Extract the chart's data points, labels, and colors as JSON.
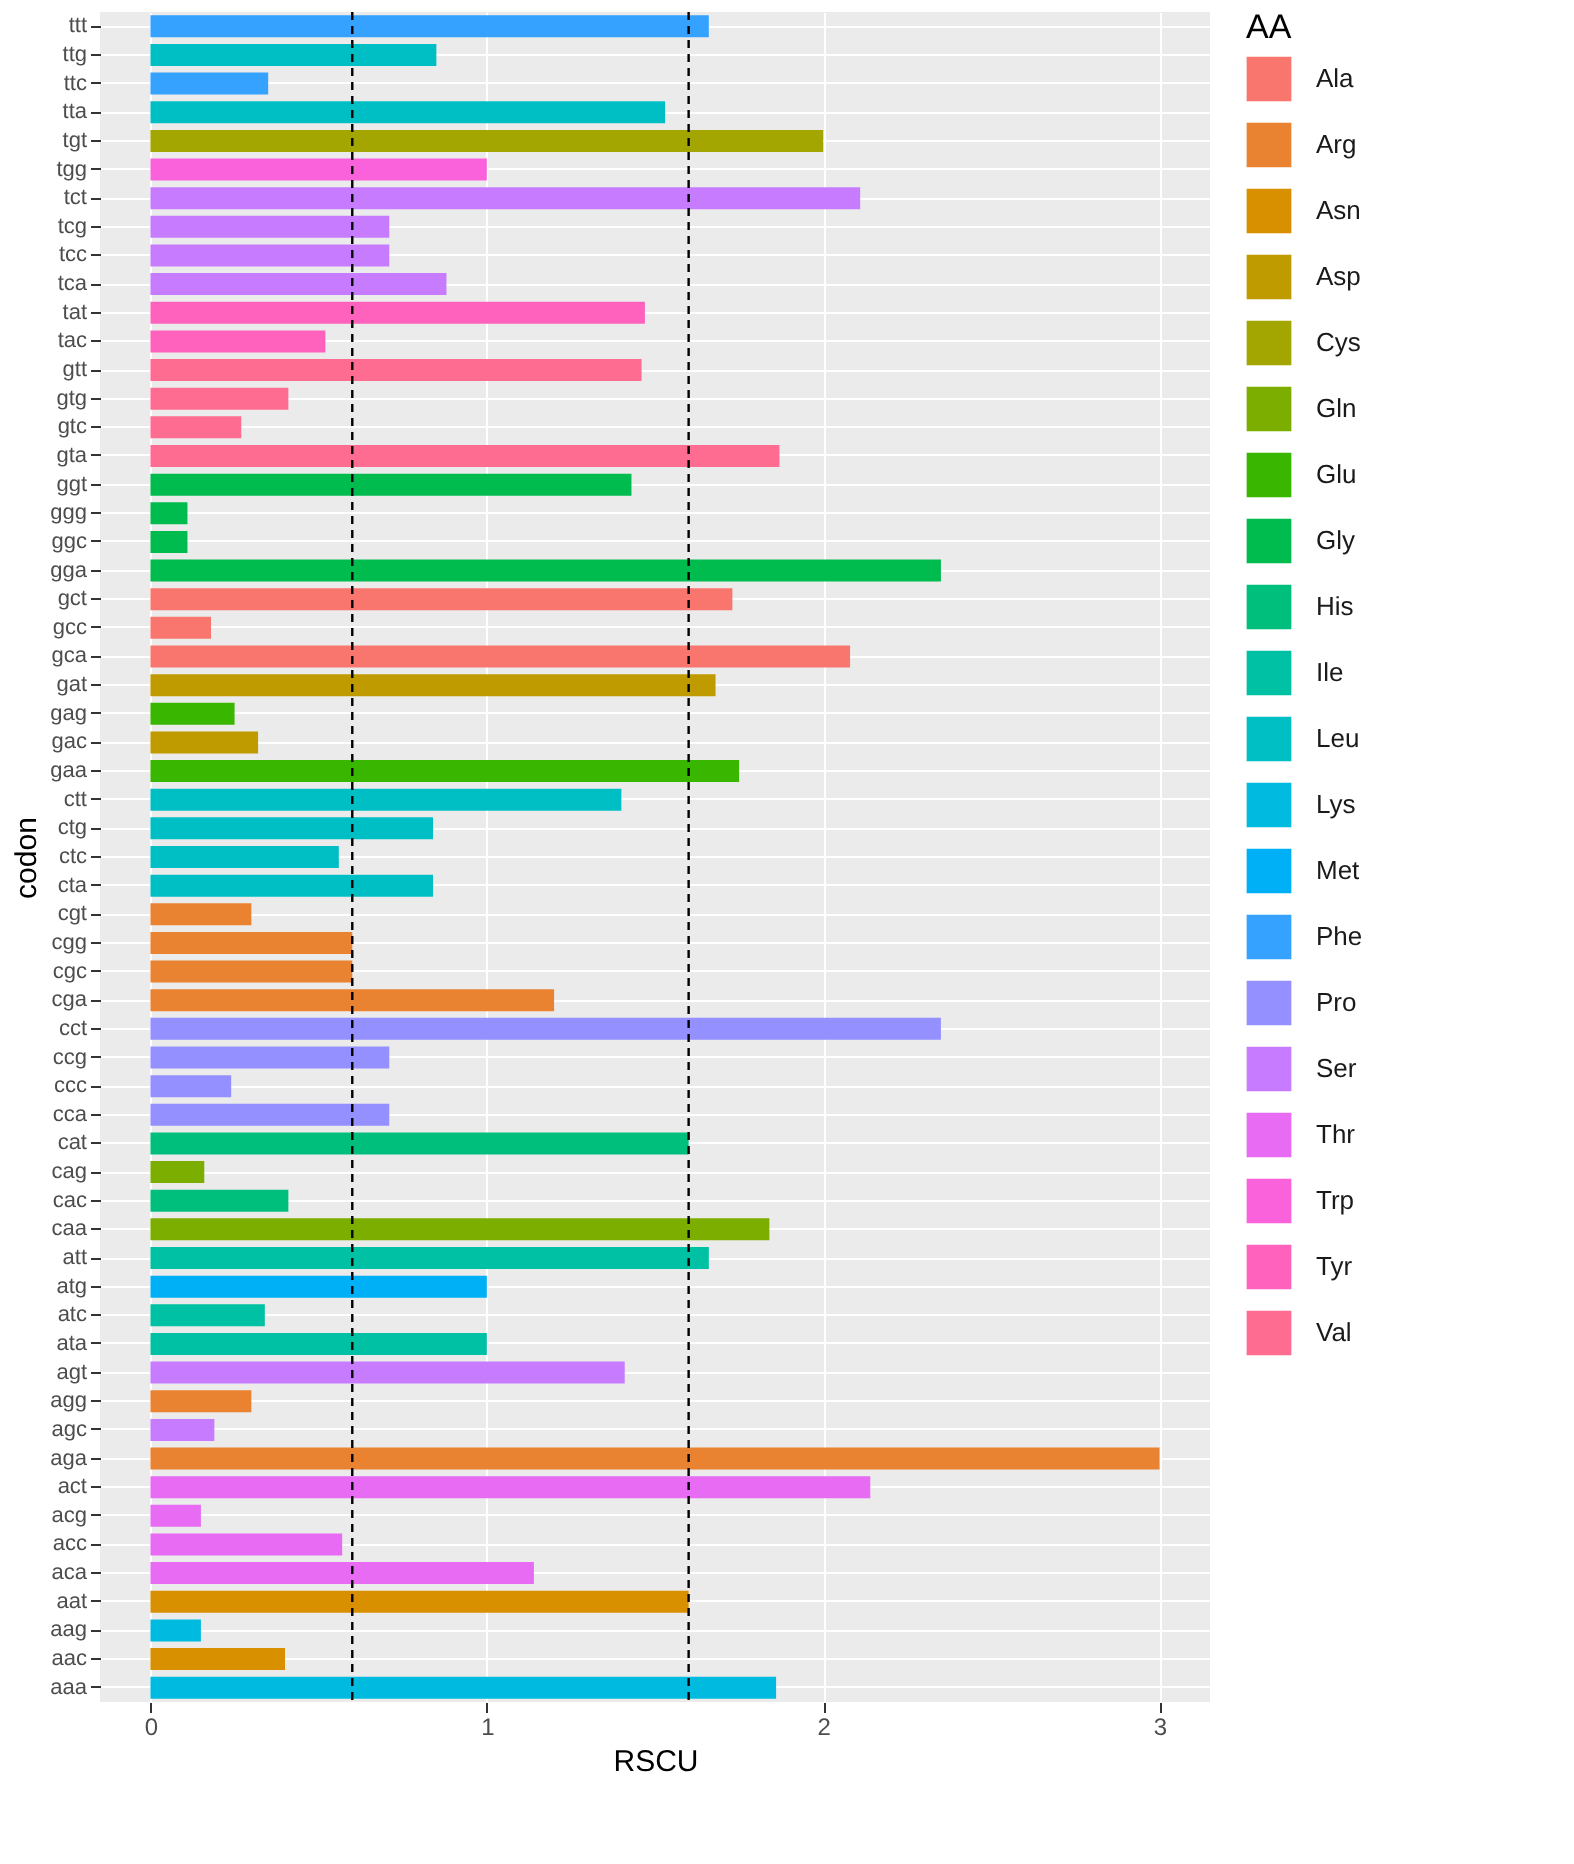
{
  "chart_data": {
    "type": "bar",
    "orientation": "horizontal",
    "xlabel": "RSCU",
    "ylabel": "codon",
    "legend_title": "AA",
    "legend": "right",
    "grid": true,
    "categories": [
      "ttt",
      "ttg",
      "ttc",
      "tta",
      "tgt",
      "tgg",
      "tct",
      "tcg",
      "tcc",
      "tca",
      "tat",
      "tac",
      "gtt",
      "gtg",
      "gtc",
      "gta",
      "ggt",
      "ggg",
      "ggc",
      "gga",
      "gct",
      "gcc",
      "gca",
      "gat",
      "gag",
      "gac",
      "gaa",
      "ctt",
      "ctg",
      "ctc",
      "cta",
      "cgt",
      "cgg",
      "cgc",
      "cga",
      "cct",
      "ccg",
      "ccc",
      "cca",
      "cat",
      "cag",
      "cac",
      "caa",
      "att",
      "atg",
      "atc",
      "ata",
      "agt",
      "agg",
      "agc",
      "aga",
      "act",
      "acg",
      "acc",
      "aca",
      "aat",
      "aag",
      "aac",
      "aaa"
    ],
    "xlim": [
      -0.15,
      3.15
    ],
    "xticks": [
      0,
      1,
      2,
      3
    ],
    "ref_lines": [
      {
        "axis": "x",
        "value": 0.6,
        "color": "#000000",
        "line_style": "dashed"
      },
      {
        "axis": "x",
        "value": 1.6,
        "color": "#000000",
        "line_style": "dashed"
      }
    ],
    "series": [
      {
        "name": "Ala",
        "color": "#F8766D",
        "values": [
          null,
          null,
          null,
          null,
          null,
          null,
          null,
          null,
          null,
          null,
          null,
          null,
          null,
          null,
          null,
          null,
          null,
          null,
          null,
          null,
          1.73,
          0.18,
          2.08,
          null,
          null,
          null,
          null,
          null,
          null,
          null,
          null,
          null,
          null,
          null,
          null,
          null,
          null,
          null,
          null,
          null,
          null,
          null,
          null,
          null,
          null,
          null,
          null,
          null,
          null,
          null,
          null,
          null,
          null,
          null,
          null,
          null,
          null,
          null,
          null
        ]
      },
      {
        "name": "Arg",
        "color": "#EA8331",
        "values": [
          null,
          null,
          null,
          null,
          null,
          null,
          null,
          null,
          null,
          null,
          null,
          null,
          null,
          null,
          null,
          null,
          null,
          null,
          null,
          null,
          null,
          null,
          null,
          null,
          null,
          null,
          null,
          null,
          null,
          null,
          null,
          0.3,
          0.6,
          0.6,
          1.2,
          null,
          null,
          null,
          null,
          null,
          null,
          null,
          null,
          null,
          null,
          null,
          null,
          null,
          0.3,
          null,
          3.0,
          null,
          null,
          null,
          null,
          null,
          null,
          null,
          null
        ]
      },
      {
        "name": "Asn",
        "color": "#D89000",
        "values": [
          null,
          null,
          null,
          null,
          null,
          null,
          null,
          null,
          null,
          null,
          null,
          null,
          null,
          null,
          null,
          null,
          null,
          null,
          null,
          null,
          null,
          null,
          null,
          null,
          null,
          null,
          null,
          null,
          null,
          null,
          null,
          null,
          null,
          null,
          null,
          null,
          null,
          null,
          null,
          null,
          null,
          null,
          null,
          null,
          null,
          null,
          null,
          null,
          null,
          null,
          null,
          null,
          null,
          null,
          null,
          1.6,
          null,
          0.4,
          null
        ]
      },
      {
        "name": "Asp",
        "color": "#C09B00",
        "values": [
          null,
          null,
          null,
          null,
          null,
          null,
          null,
          null,
          null,
          null,
          null,
          null,
          null,
          null,
          null,
          null,
          null,
          null,
          null,
          null,
          null,
          null,
          null,
          1.68,
          null,
          0.32,
          null,
          null,
          null,
          null,
          null,
          null,
          null,
          null,
          null,
          null,
          null,
          null,
          null,
          null,
          null,
          null,
          null,
          null,
          null,
          null,
          null,
          null,
          null,
          null,
          null,
          null,
          null,
          null,
          null,
          null,
          null,
          null,
          null
        ]
      },
      {
        "name": "Cys",
        "color": "#A3A500",
        "values": [
          null,
          null,
          null,
          null,
          2.0,
          null,
          null,
          null,
          null,
          null,
          null,
          null,
          null,
          null,
          null,
          null,
          null,
          null,
          null,
          null,
          null,
          null,
          null,
          null,
          null,
          null,
          null,
          null,
          null,
          null,
          null,
          null,
          null,
          null,
          null,
          null,
          null,
          null,
          null,
          null,
          null,
          null,
          null,
          null,
          null,
          null,
          null,
          null,
          null,
          null,
          null,
          null,
          null,
          null,
          null,
          null,
          null,
          null,
          null
        ]
      },
      {
        "name": "Gln",
        "color": "#7CAE00",
        "values": [
          null,
          null,
          null,
          null,
          null,
          null,
          null,
          null,
          null,
          null,
          null,
          null,
          null,
          null,
          null,
          null,
          null,
          null,
          null,
          null,
          null,
          null,
          null,
          null,
          null,
          null,
          null,
          null,
          null,
          null,
          null,
          null,
          null,
          null,
          null,
          null,
          null,
          null,
          null,
          null,
          0.16,
          null,
          1.84,
          null,
          null,
          null,
          null,
          null,
          null,
          null,
          null,
          null,
          null,
          null,
          null,
          null,
          null,
          null,
          null
        ]
      },
      {
        "name": "Glu",
        "color": "#39B600",
        "values": [
          null,
          null,
          null,
          null,
          null,
          null,
          null,
          null,
          null,
          null,
          null,
          null,
          null,
          null,
          null,
          null,
          null,
          null,
          null,
          null,
          null,
          null,
          null,
          null,
          0.25,
          null,
          1.75,
          null,
          null,
          null,
          null,
          null,
          null,
          null,
          null,
          null,
          null,
          null,
          null,
          null,
          null,
          null,
          null,
          null,
          null,
          null,
          null,
          null,
          null,
          null,
          null,
          null,
          null,
          null,
          null,
          null,
          null,
          null,
          null
        ]
      },
      {
        "name": "Gly",
        "color": "#00BB4E",
        "values": [
          null,
          null,
          null,
          null,
          null,
          null,
          null,
          null,
          null,
          null,
          null,
          null,
          null,
          null,
          null,
          null,
          1.43,
          0.11,
          0.11,
          2.35,
          null,
          null,
          null,
          null,
          null,
          null,
          null,
          null,
          null,
          null,
          null,
          null,
          null,
          null,
          null,
          null,
          null,
          null,
          null,
          null,
          null,
          null,
          null,
          null,
          null,
          null,
          null,
          null,
          null,
          null,
          null,
          null,
          null,
          null,
          null,
          null,
          null,
          null,
          null
        ]
      },
      {
        "name": "His",
        "color": "#00BF7D",
        "values": [
          null,
          null,
          null,
          null,
          null,
          null,
          null,
          null,
          null,
          null,
          null,
          null,
          null,
          null,
          null,
          null,
          null,
          null,
          null,
          null,
          null,
          null,
          null,
          null,
          null,
          null,
          null,
          null,
          null,
          null,
          null,
          null,
          null,
          null,
          null,
          null,
          null,
          null,
          null,
          1.6,
          null,
          0.41,
          null,
          null,
          null,
          null,
          null,
          null,
          null,
          null,
          null,
          null,
          null,
          null,
          null,
          null,
          null,
          null,
          null
        ]
      },
      {
        "name": "Ile",
        "color": "#00C1A3",
        "values": [
          null,
          null,
          null,
          null,
          null,
          null,
          null,
          null,
          null,
          null,
          null,
          null,
          null,
          null,
          null,
          null,
          null,
          null,
          null,
          null,
          null,
          null,
          null,
          null,
          null,
          null,
          null,
          null,
          null,
          null,
          null,
          null,
          null,
          null,
          null,
          null,
          null,
          null,
          null,
          null,
          null,
          null,
          null,
          1.66,
          null,
          0.34,
          1.0,
          null,
          null,
          null,
          null,
          null,
          null,
          null,
          null,
          null,
          null,
          null,
          null
        ]
      },
      {
        "name": "Leu",
        "color": "#00BFC4",
        "values": [
          null,
          0.85,
          null,
          1.53,
          null,
          null,
          null,
          null,
          null,
          null,
          null,
          null,
          null,
          null,
          null,
          null,
          null,
          null,
          null,
          null,
          null,
          null,
          null,
          null,
          null,
          null,
          null,
          1.4,
          0.84,
          0.56,
          0.84,
          null,
          null,
          null,
          null,
          null,
          null,
          null,
          null,
          null,
          null,
          null,
          null,
          null,
          null,
          null,
          null,
          null,
          null,
          null,
          null,
          null,
          null,
          null,
          null,
          null,
          null,
          null,
          null
        ]
      },
      {
        "name": "Lys",
        "color": "#00BAE0",
        "values": [
          null,
          null,
          null,
          null,
          null,
          null,
          null,
          null,
          null,
          null,
          null,
          null,
          null,
          null,
          null,
          null,
          null,
          null,
          null,
          null,
          null,
          null,
          null,
          null,
          null,
          null,
          null,
          null,
          null,
          null,
          null,
          null,
          null,
          null,
          null,
          null,
          null,
          null,
          null,
          null,
          null,
          null,
          null,
          null,
          null,
          null,
          null,
          null,
          null,
          null,
          null,
          null,
          null,
          null,
          null,
          null,
          0.15,
          null,
          1.86
        ]
      },
      {
        "name": "Met",
        "color": "#00B0F6",
        "values": [
          null,
          null,
          null,
          null,
          null,
          null,
          null,
          null,
          null,
          null,
          null,
          null,
          null,
          null,
          null,
          null,
          null,
          null,
          null,
          null,
          null,
          null,
          null,
          null,
          null,
          null,
          null,
          null,
          null,
          null,
          null,
          null,
          null,
          null,
          null,
          null,
          null,
          null,
          null,
          null,
          null,
          null,
          null,
          null,
          1.0,
          null,
          null,
          null,
          null,
          null,
          null,
          null,
          null,
          null,
          null,
          null,
          null,
          null,
          null
        ]
      },
      {
        "name": "Phe",
        "color": "#35A2FF",
        "values": [
          1.66,
          null,
          0.35,
          null,
          null,
          null,
          null,
          null,
          null,
          null,
          null,
          null,
          null,
          null,
          null,
          null,
          null,
          null,
          null,
          null,
          null,
          null,
          null,
          null,
          null,
          null,
          null,
          null,
          null,
          null,
          null,
          null,
          null,
          null,
          null,
          null,
          null,
          null,
          null,
          null,
          null,
          null,
          null,
          null,
          null,
          null,
          null,
          null,
          null,
          null,
          null,
          null,
          null,
          null,
          null,
          null,
          null,
          null,
          null
        ]
      },
      {
        "name": "Pro",
        "color": "#9590FF",
        "values": [
          null,
          null,
          null,
          null,
          null,
          null,
          null,
          null,
          null,
          null,
          null,
          null,
          null,
          null,
          null,
          null,
          null,
          null,
          null,
          null,
          null,
          null,
          null,
          null,
          null,
          null,
          null,
          null,
          null,
          null,
          null,
          null,
          null,
          null,
          null,
          2.35,
          0.71,
          0.24,
          0.71,
          null,
          null,
          null,
          null,
          null,
          null,
          null,
          null,
          null,
          null,
          null,
          null,
          null,
          null,
          null,
          null,
          null,
          null,
          null,
          null
        ]
      },
      {
        "name": "Ser",
        "color": "#C77CFF",
        "values": [
          null,
          null,
          null,
          null,
          null,
          null,
          2.11,
          0.71,
          0.71,
          0.88,
          null,
          null,
          null,
          null,
          null,
          null,
          null,
          null,
          null,
          null,
          null,
          null,
          null,
          null,
          null,
          null,
          null,
          null,
          null,
          null,
          null,
          null,
          null,
          null,
          null,
          null,
          null,
          null,
          null,
          null,
          null,
          null,
          null,
          null,
          null,
          null,
          null,
          1.41,
          null,
          0.19,
          null,
          null,
          null,
          null,
          null,
          null,
          null,
          null,
          null
        ]
      },
      {
        "name": "Thr",
        "color": "#E76BF3",
        "values": [
          null,
          null,
          null,
          null,
          null,
          null,
          null,
          null,
          null,
          null,
          null,
          null,
          null,
          null,
          null,
          null,
          null,
          null,
          null,
          null,
          null,
          null,
          null,
          null,
          null,
          null,
          null,
          null,
          null,
          null,
          null,
          null,
          null,
          null,
          null,
          null,
          null,
          null,
          null,
          null,
          null,
          null,
          null,
          null,
          null,
          null,
          null,
          null,
          null,
          null,
          null,
          2.14,
          0.15,
          0.57,
          1.14,
          null,
          null,
          null,
          null
        ]
      },
      {
        "name": "Trp",
        "color": "#FA62DB",
        "values": [
          null,
          null,
          null,
          null,
          null,
          1.0,
          null,
          null,
          null,
          null,
          null,
          null,
          null,
          null,
          null,
          null,
          null,
          null,
          null,
          null,
          null,
          null,
          null,
          null,
          null,
          null,
          null,
          null,
          null,
          null,
          null,
          null,
          null,
          null,
          null,
          null,
          null,
          null,
          null,
          null,
          null,
          null,
          null,
          null,
          null,
          null,
          null,
          null,
          null,
          null,
          null,
          null,
          null,
          null,
          null,
          null,
          null,
          null,
          null
        ]
      },
      {
        "name": "Tyr",
        "color": "#FF62BC",
        "values": [
          null,
          null,
          null,
          null,
          null,
          null,
          null,
          null,
          null,
          null,
          1.47,
          0.52,
          null,
          null,
          null,
          null,
          null,
          null,
          null,
          null,
          null,
          null,
          null,
          null,
          null,
          null,
          null,
          null,
          null,
          null,
          null,
          null,
          null,
          null,
          null,
          null,
          null,
          null,
          null,
          null,
          null,
          null,
          null,
          null,
          null,
          null,
          null,
          null,
          null,
          null,
          null,
          null,
          null,
          null,
          null,
          null,
          null,
          null,
          null
        ]
      },
      {
        "name": "Val",
        "color": "#FF6C91",
        "values": [
          null,
          null,
          null,
          null,
          null,
          null,
          null,
          null,
          null,
          null,
          null,
          null,
          1.46,
          0.41,
          0.27,
          1.87,
          null,
          null,
          null,
          null,
          null,
          null,
          null,
          null,
          null,
          null,
          null,
          null,
          null,
          null,
          null,
          null,
          null,
          null,
          null,
          null,
          null,
          null,
          null,
          null,
          null,
          null,
          null,
          null,
          null,
          null,
          null,
          null,
          null,
          null,
          null,
          null,
          null,
          null,
          null,
          null,
          null,
          null,
          null
        ]
      }
    ]
  }
}
